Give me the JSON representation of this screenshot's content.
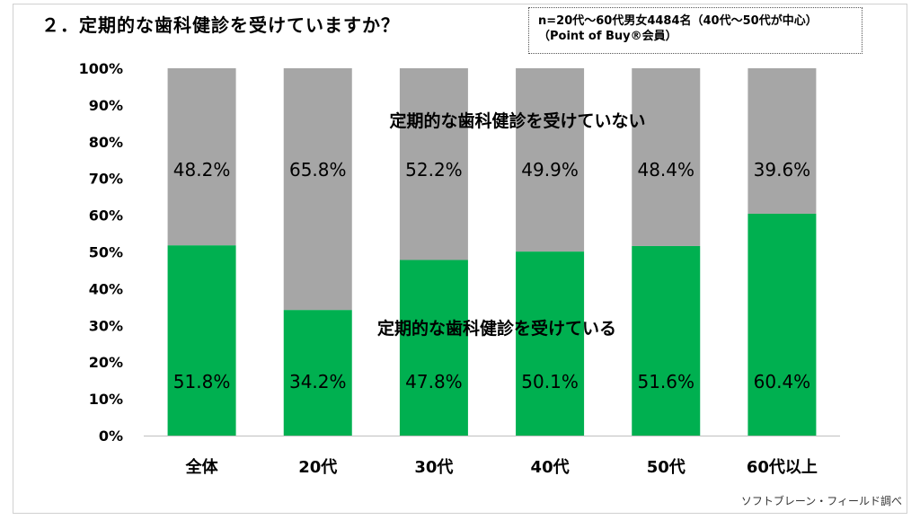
{
  "title": "２．定期的な歯科健診を受けていますか？",
  "note": {
    "line1": "n=20代～60代男女4484名（40代～50代が中心）",
    "line2": "（Point of Buy®会員）"
  },
  "source": "ソフトブレーン・フィールド調べ",
  "colors": {
    "receive": "#00b050",
    "not_receive": "#a6a6a6"
  },
  "chart_data": {
    "type": "bar",
    "stacked": true,
    "categories": [
      "全体",
      "20代",
      "30代",
      "40代",
      "50代",
      "60代以上"
    ],
    "series": [
      {
        "name": "定期的な歯科健診を受けている",
        "values": [
          51.8,
          34.2,
          47.8,
          50.1,
          51.6,
          60.4
        ]
      },
      {
        "name": "定期的な歯科健診を受けていない",
        "values": [
          48.2,
          65.8,
          52.2,
          49.9,
          48.4,
          39.6
        ]
      }
    ],
    "value_labels": {
      "receive": [
        "51.8%",
        "34.2%",
        "47.8%",
        "50.1%",
        "51.6%",
        "60.4%"
      ],
      "not_receive": [
        "48.2%",
        "65.8%",
        "52.2%",
        "49.9%",
        "48.4%",
        "39.6%"
      ]
    },
    "y_ticks": [
      "0%",
      "10%",
      "20%",
      "30%",
      "40%",
      "50%",
      "60%",
      "70%",
      "80%",
      "90%",
      "100%"
    ],
    "ylim": [
      0,
      100
    ]
  }
}
